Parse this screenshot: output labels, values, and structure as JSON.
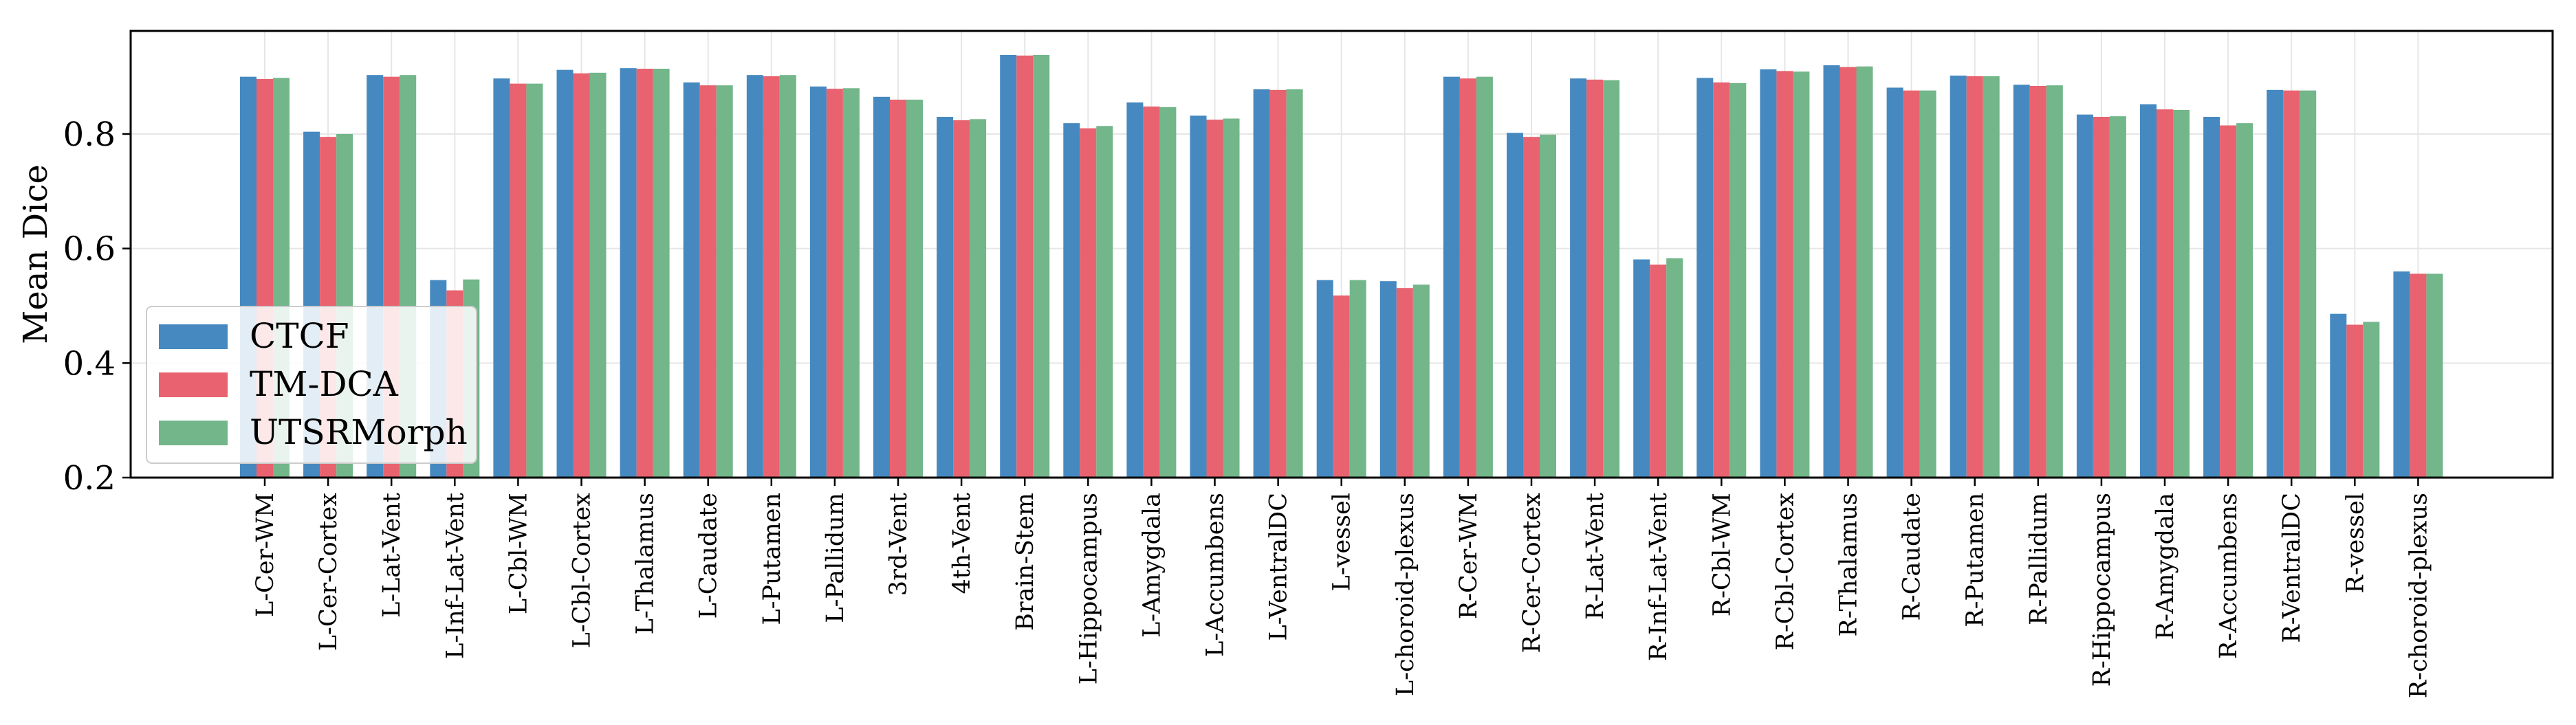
{
  "chart_data": {
    "type": "bar",
    "title": "",
    "xlabel": "",
    "ylabel": "Mean Dice",
    "ylim": [
      0.2,
      0.98
    ],
    "yticks": [
      0.2,
      0.4,
      0.6,
      0.8
    ],
    "grid": true,
    "legend_position": "lower-left",
    "categories": [
      "L-Cer-WM",
      "L-Cer-Cortex",
      "L-Lat-Vent",
      "L-Inf-Lat-Vent",
      "L-Cbl-WM",
      "L-Cbl-Cortex",
      "L-Thalamus",
      "L-Caudate",
      "L-Putamen",
      "L-Pallidum",
      "3rd-Vent",
      "4th-Vent",
      "Brain-Stem",
      "L-Hippocampus",
      "L-Amygdala",
      "L-Accumbens",
      "L-VentralDC",
      "L-vessel",
      "L-choroid-plexus",
      "R-Cer-WM",
      "R-Cer-Cortex",
      "R-Lat-Vent",
      "R-Inf-Lat-Vent",
      "R-Cbl-WM",
      "R-Cbl-Cortex",
      "R-Thalamus",
      "R-Caudate",
      "R-Putamen",
      "R-Pallidum",
      "R-Hippocampus",
      "R-Amygdala",
      "R-Accumbens",
      "R-VentralDC",
      "R-vessel",
      "R-choroid-plexus"
    ],
    "series": [
      {
        "name": "CTCF",
        "color": "#4689c0",
        "values": [
          0.9,
          0.804,
          0.903,
          0.545,
          0.897,
          0.912,
          0.915,
          0.89,
          0.903,
          0.883,
          0.865,
          0.83,
          0.938,
          0.819,
          0.855,
          0.832,
          0.878,
          0.545,
          0.543,
          0.9,
          0.802,
          0.897,
          0.581,
          0.898,
          0.913,
          0.92,
          0.881,
          0.902,
          0.886,
          0.834,
          0.852,
          0.83,
          0.877,
          0.486,
          0.56
        ]
      },
      {
        "name": "TM-DCA",
        "color": "#e8636f",
        "values": [
          0.896,
          0.795,
          0.9,
          0.527,
          0.888,
          0.906,
          0.914,
          0.885,
          0.901,
          0.879,
          0.86,
          0.824,
          0.937,
          0.81,
          0.848,
          0.825,
          0.877,
          0.518,
          0.531,
          0.897,
          0.795,
          0.895,
          0.572,
          0.89,
          0.91,
          0.917,
          0.876,
          0.901,
          0.884,
          0.83,
          0.843,
          0.815,
          0.876,
          0.467,
          0.556
        ]
      },
      {
        "name": "UTSRMorph",
        "color": "#72b68a",
        "values": [
          0.898,
          0.8,
          0.903,
          0.546,
          0.888,
          0.907,
          0.914,
          0.885,
          0.903,
          0.88,
          0.86,
          0.826,
          0.938,
          0.814,
          0.847,
          0.827,
          0.878,
          0.545,
          0.537,
          0.9,
          0.799,
          0.894,
          0.583,
          0.889,
          0.909,
          0.918,
          0.876,
          0.901,
          0.885,
          0.831,
          0.842,
          0.819,
          0.876,
          0.472,
          0.556
        ]
      }
    ]
  }
}
